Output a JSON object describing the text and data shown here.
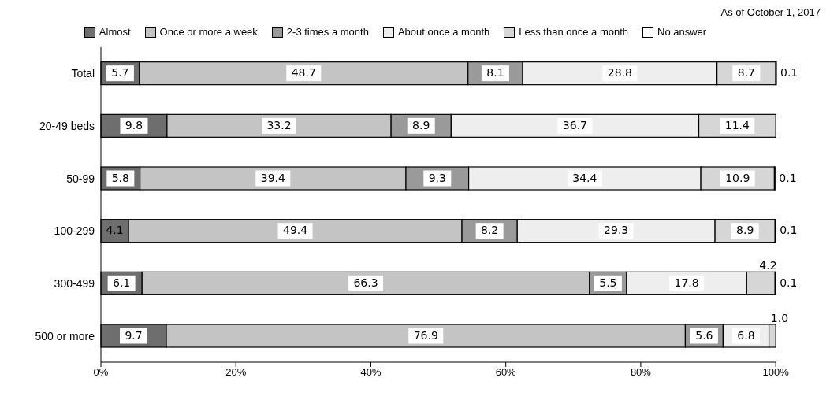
{
  "chart_data": {
    "type": "bar",
    "orientation": "horizontal",
    "stacked": true,
    "categories": [
      "Total",
      "20-49 beds",
      "50-99",
      "100-299",
      "300-499",
      "500 or more"
    ],
    "series": [
      {
        "name": "Almost",
        "color": "#6e6e6e",
        "values": [
          5.7,
          9.8,
          5.8,
          4.1,
          6.1,
          9.7
        ],
        "value_labels": [
          "5.7",
          "9.8",
          "5.8",
          "4.1",
          "6.1",
          "9.7"
        ]
      },
      {
        "name": "Once or more a week",
        "color": "#c4c4c4",
        "values": [
          48.7,
          33.2,
          39.4,
          49.4,
          66.3,
          76.9
        ],
        "value_labels": [
          "48.7",
          "33.2",
          "39.4",
          "49.4",
          "66.3",
          "76.9"
        ]
      },
      {
        "name": "2-3 times a month",
        "color": "#9a9a9a",
        "values": [
          8.1,
          8.9,
          9.3,
          8.2,
          5.5,
          5.6
        ],
        "value_labels": [
          "8.1",
          "8.9",
          "9.3",
          "8.2",
          "5.5",
          "5.6"
        ]
      },
      {
        "name": "About once a month",
        "color": "#eeeeee",
        "values": [
          28.8,
          36.7,
          34.4,
          29.3,
          17.8,
          6.8
        ],
        "value_labels": [
          "28.8",
          "36.7",
          "34.4",
          "29.3",
          "17.8",
          "6.8"
        ]
      },
      {
        "name": "Less than once a month",
        "color": "#d6d6d6",
        "values": [
          8.7,
          11.4,
          10.9,
          8.9,
          4.2,
          1.0
        ],
        "value_labels": [
          "8.7",
          "11.4",
          "10.9",
          "8.9",
          "4.2",
          "1.0"
        ]
      },
      {
        "name": "No answer",
        "color": "#ffffff",
        "values": [
          0.1,
          null,
          0.1,
          0.1,
          0.1,
          null
        ],
        "value_labels": [
          "0.1",
          null,
          "0.1",
          "0.1",
          "0.1",
          null
        ]
      }
    ],
    "xlim": [
      0,
      100
    ],
    "xticks": [
      {
        "value": 0,
        "label": "0%"
      },
      {
        "value": 20,
        "label": "20%"
      },
      {
        "value": 40,
        "label": "40%"
      },
      {
        "value": 60,
        "label": "60%"
      },
      {
        "value": 80,
        "label": "80%"
      },
      {
        "value": 100,
        "label": "100%"
      }
    ],
    "grid": false,
    "legend": "top",
    "annotations": [
      "As of October 1, 2017"
    ]
  }
}
